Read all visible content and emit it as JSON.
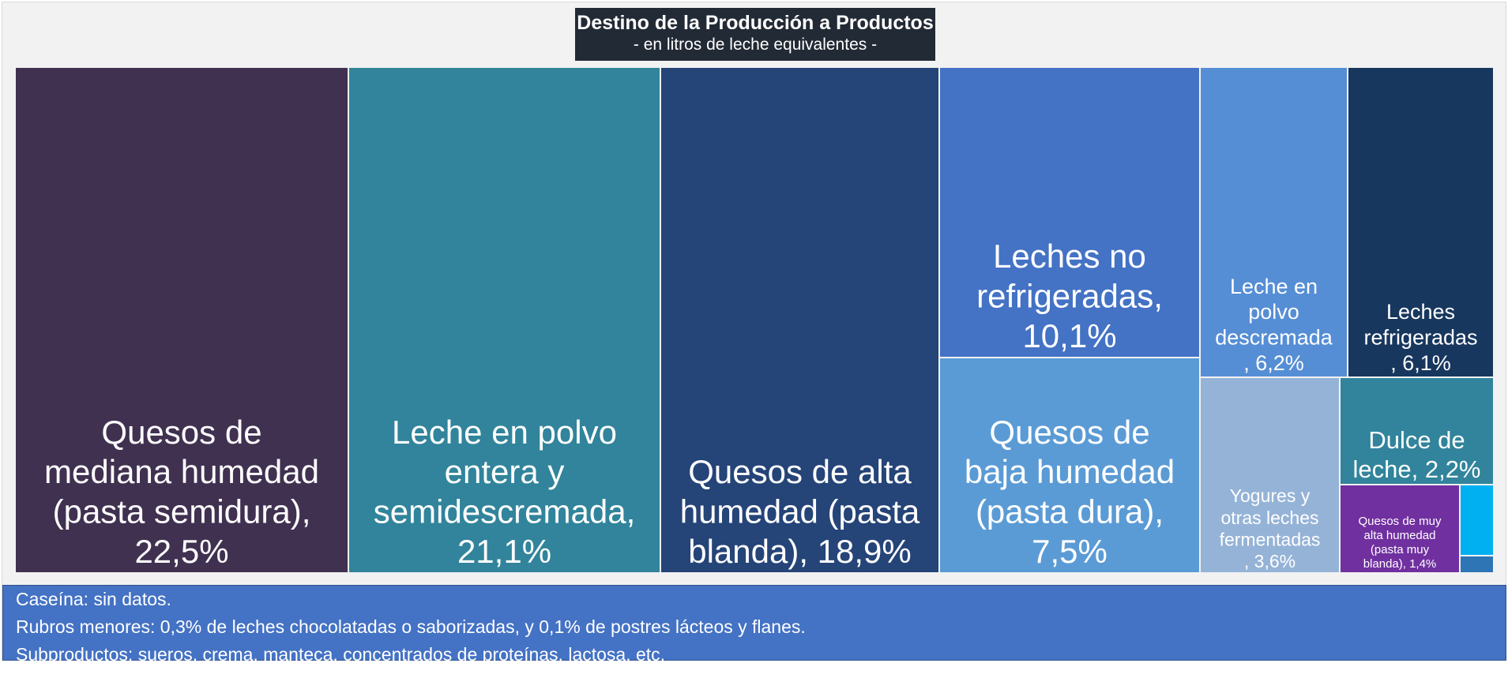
{
  "chart_data": {
    "type": "treemap",
    "title": "Destino de la Producción a Productos",
    "subtitle": "- en litros de leche equivalentes -",
    "items": [
      {
        "label": "Quesos de mediana humedad (pasta semidura), 22,5%",
        "value": 22.5,
        "color": "#403151"
      },
      {
        "label": "Leche en polvo entera y semidescremada, 21,1%",
        "value": 21.1,
        "color": "#31849b"
      },
      {
        "label": "Quesos de alta humedad (pasta blanda), 18,9%",
        "value": 18.9,
        "color": "#254478"
      },
      {
        "label": "Leches no refrigeradas, 10,1%",
        "value": 10.1,
        "color": "#4472c4"
      },
      {
        "label": "Quesos de baja humedad (pasta dura), 7,5%",
        "value": 7.5,
        "color": "#5b9bd5"
      },
      {
        "label": "Leche en polvo descremada, 6,2%",
        "value": 6.2,
        "color": "#558ed5"
      },
      {
        "label": "Leches refrigeradas, 6,1%",
        "value": 6.1,
        "color": "#17375e"
      },
      {
        "label": "Yogures y otras leches fermentadas, 3,6%",
        "value": 3.6,
        "color": "#95b3d7"
      },
      {
        "label": "Dulce de leche, 2,2%",
        "value": 2.2,
        "color": "#31849b"
      },
      {
        "label": "Quesos de muy alta humedad (pasta muy blanda), 1,4%",
        "value": 1.4,
        "color": "#7030a0"
      },
      {
        "label": "",
        "value": 0.3,
        "color": "#00b0f0"
      },
      {
        "label": "",
        "value": 0.1,
        "color": "#2e75b6"
      }
    ]
  },
  "notes": {
    "line1": "Caseína: sin datos.",
    "line2": "Rubros menores: 0,3% de leches chocolatadas o saborizadas, y 0,1% de postres lácteos y flanes.",
    "line3": "Subproductos: sueros, crema, manteca, concentrados de proteínas, lactosa, etc."
  }
}
